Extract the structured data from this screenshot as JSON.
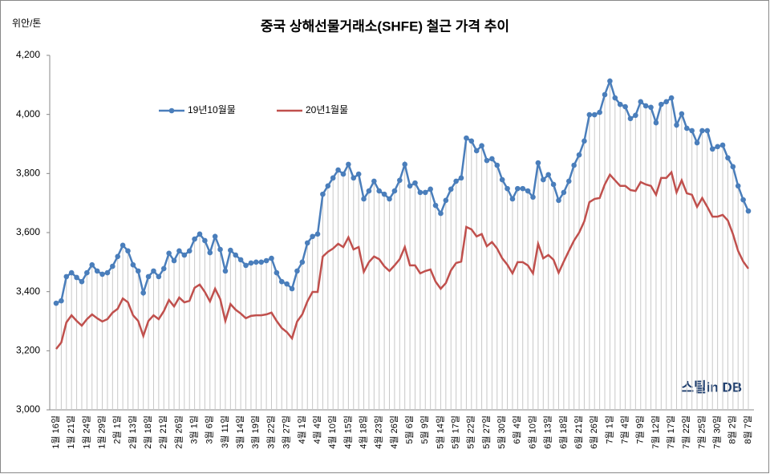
{
  "chart_data": {
    "type": "line",
    "title": "중국 상해선물거래소(SHFE)  철근 가격 추이",
    "y_label": "위안/톤",
    "watermark": "스틸in DB",
    "drop_lines": true,
    "ylim": [
      3000,
      4200
    ],
    "yticks": [
      {
        "value": 3000,
        "label": "3,000"
      },
      {
        "value": 3200,
        "label": "3,200"
      },
      {
        "value": 3400,
        "label": "3,400"
      },
      {
        "value": 3600,
        "label": "3,600"
      },
      {
        "value": 3800,
        "label": "3,800"
      },
      {
        "value": 4000,
        "label": "4,000"
      },
      {
        "value": 4200,
        "label": "4,200"
      }
    ],
    "categories": [
      "1월 16일",
      null,
      null,
      "1월 21일",
      null,
      null,
      "1월 24일",
      null,
      null,
      "1월 29일",
      null,
      null,
      "2월 1일",
      null,
      null,
      "2월 13일",
      null,
      null,
      "2월 18일",
      null,
      null,
      "2월 21일",
      null,
      null,
      "2월 26일",
      null,
      null,
      "3월 1일",
      null,
      null,
      "3월 6일",
      null,
      null,
      "3월 11일",
      null,
      null,
      "3월 14일",
      null,
      null,
      "3월 19일",
      null,
      null,
      "3월 22일",
      null,
      null,
      "3월 27일",
      null,
      null,
      "4월 1일",
      null,
      null,
      "4월 4일",
      null,
      null,
      "4월 10일",
      null,
      null,
      "4월 15일",
      null,
      null,
      "4월 18일",
      null,
      null,
      "4월 23일",
      null,
      null,
      "4월 26일",
      null,
      null,
      "5월 6일",
      null,
      null,
      "5월 9일",
      null,
      null,
      "5월 14일",
      null,
      null,
      "5월 17일",
      null,
      null,
      "5월 22일",
      null,
      null,
      "5월 27일",
      null,
      null,
      "5월 30일",
      null,
      null,
      "6월 4일",
      null,
      null,
      "6월 10일",
      null,
      null,
      "6월 13일",
      null,
      null,
      "6월 18일",
      null,
      null,
      "6월 21일",
      null,
      null,
      "6월 26일",
      null,
      null,
      "7월 1일",
      null,
      null,
      "7월 4일",
      null,
      null,
      "7월 9일",
      null,
      null,
      "7월 12일",
      null,
      null,
      "7월 17일",
      null,
      null,
      "7월 22일",
      null,
      null,
      "7월 25일",
      null,
      null,
      "7월 30일",
      null,
      null,
      "8월 2일",
      null,
      null,
      "8월 7일"
    ],
    "series": [
      {
        "name": "19년10월물",
        "color": "#4a7ebb",
        "markers": true,
        "values": [
          3361,
          3369,
          3451,
          3464,
          3448,
          3434,
          3464,
          3491,
          3470,
          3459,
          3464,
          3486,
          3519,
          3557,
          3538,
          3491,
          3470,
          3396,
          3451,
          3470,
          3451,
          3478,
          3530,
          3505,
          3538,
          3524,
          3538,
          3578,
          3595,
          3573,
          3532,
          3587,
          3543,
          3470,
          3540,
          3524,
          3508,
          3489,
          3497,
          3500,
          3500,
          3505,
          3513,
          3464,
          3434,
          3426,
          3410,
          3470,
          3500,
          3565,
          3587,
          3595,
          3730,
          3758,
          3785,
          3812,
          3798,
          3831,
          3785,
          3798,
          3714,
          3741,
          3774,
          3741,
          3730,
          3714,
          3741,
          3777,
          3831,
          3758,
          3768,
          3736,
          3736,
          3747,
          3692,
          3665,
          3709,
          3747,
          3774,
          3785,
          3920,
          3910,
          3877,
          3894,
          3844,
          3850,
          3828,
          3779,
          3749,
          3714,
          3749,
          3749,
          3741,
          3720,
          3836,
          3779,
          3796,
          3763,
          3709,
          3736,
          3774,
          3828,
          3863,
          3910,
          3999,
          3999,
          4007,
          4067,
          4113,
          4056,
          4034,
          4026,
          3986,
          3997,
          4043,
          4029,
          4024,
          3972,
          4034,
          4043,
          4056,
          3964,
          4002,
          3953,
          3945,
          3904,
          3945,
          3945,
          3883,
          3891,
          3896,
          3853,
          3823,
          3758,
          3711,
          3673
        ]
      },
      {
        "name": "20년1월물",
        "color": "#c0504d",
        "markers": false,
        "values": [
          3206,
          3228,
          3296,
          3320,
          3301,
          3285,
          3307,
          3323,
          3310,
          3299,
          3307,
          3329,
          3342,
          3377,
          3364,
          3320,
          3301,
          3250,
          3301,
          3320,
          3307,
          3334,
          3372,
          3350,
          3380,
          3364,
          3369,
          3413,
          3424,
          3399,
          3367,
          3410,
          3375,
          3301,
          3358,
          3339,
          3326,
          3310,
          3318,
          3320,
          3320,
          3323,
          3329,
          3301,
          3277,
          3263,
          3242,
          3299,
          3323,
          3367,
          3399,
          3399,
          3519,
          3535,
          3546,
          3562,
          3551,
          3584,
          3543,
          3551,
          3467,
          3500,
          3519,
          3510,
          3486,
          3470,
          3489,
          3510,
          3551,
          3489,
          3489,
          3462,
          3470,
          3475,
          3434,
          3410,
          3429,
          3472,
          3497,
          3502,
          3619,
          3611,
          3587,
          3595,
          3554,
          3568,
          3546,
          3513,
          3491,
          3462,
          3500,
          3500,
          3489,
          3462,
          3562,
          3513,
          3524,
          3508,
          3464,
          3502,
          3538,
          3573,
          3600,
          3638,
          3703,
          3714,
          3717,
          3763,
          3796,
          3777,
          3758,
          3758,
          3744,
          3741,
          3771,
          3763,
          3758,
          3728,
          3785,
          3785,
          3804,
          3736,
          3777,
          3733,
          3728,
          3687,
          3717,
          3687,
          3654,
          3654,
          3660,
          3641,
          3595,
          3538,
          3502,
          3478
        ]
      }
    ]
  }
}
